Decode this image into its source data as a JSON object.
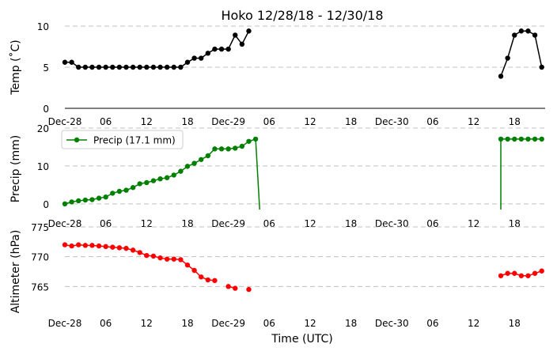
{
  "chart_data": {
    "type": "line",
    "title": "Hoko 12/28/18 - 12/30/18",
    "xlabel": "Time (UTC)",
    "x_unit": "hours from Dec-28 00:00 UTC",
    "x_ticks": [
      {
        "hour": 0,
        "label": "Dec-28"
      },
      {
        "hour": 6,
        "label": "06"
      },
      {
        "hour": 12,
        "label": "12"
      },
      {
        "hour": 18,
        "label": "18"
      },
      {
        "hour": 24,
        "label": "Dec-29"
      },
      {
        "hour": 30,
        "label": "06"
      },
      {
        "hour": 36,
        "label": "12"
      },
      {
        "hour": 42,
        "label": "18"
      },
      {
        "hour": 48,
        "label": "Dec-30"
      },
      {
        "hour": 54,
        "label": "06"
      },
      {
        "hour": 60,
        "label": "12"
      },
      {
        "hour": 66,
        "label": "18"
      }
    ],
    "xlim": [
      0,
      70.5
    ],
    "grid": "horizontal dashed",
    "panels": [
      {
        "key": "temp",
        "ylabel": "Temp (˚C)",
        "ylim": [
          0,
          10
        ],
        "yticks": [
          0,
          5,
          10
        ],
        "color": "#000000",
        "legend": null,
        "segments": [
          {
            "x": [
              0,
              1,
              2,
              3,
              4,
              5,
              6,
              7,
              8,
              9,
              10,
              11,
              12,
              13,
              14,
              15,
              16,
              17,
              18,
              19,
              20,
              21,
              22,
              23,
              24,
              25,
              26,
              27
            ],
            "y": [
              5.6,
              5.6,
              5.0,
              5.0,
              5.0,
              5.0,
              5.0,
              5.0,
              5.0,
              5.0,
              5.0,
              5.0,
              5.0,
              5.0,
              5.0,
              5.0,
              5.0,
              5.0,
              5.6,
              6.1,
              6.1,
              6.7,
              7.2,
              7.2,
              7.2,
              8.9,
              7.8,
              9.4
            ]
          },
          {
            "x": [
              64,
              65,
              66,
              67,
              68,
              69,
              70
            ],
            "y": [
              3.9,
              6.1,
              8.9,
              9.4,
              9.4,
              8.9,
              5.0
            ]
          }
        ]
      },
      {
        "key": "precip",
        "ylabel": "Precip (mm)",
        "ylim": [
          -1.5,
          20
        ],
        "yticks": [
          0,
          10,
          20
        ],
        "color": "#008000",
        "legend": "Precip (17.1 mm)",
        "segments": [
          {
            "x": [
              0,
              1,
              2,
              3,
              4,
              5,
              6,
              7,
              8,
              9,
              10,
              11,
              12,
              13,
              14,
              15,
              16,
              17,
              18,
              19,
              20,
              21,
              22,
              23,
              24,
              25,
              26,
              27,
              28,
              28.6
            ],
            "y": [
              0.0,
              0.5,
              0.8,
              1.0,
              1.1,
              1.5,
              1.8,
              2.8,
              3.3,
              3.6,
              4.3,
              5.3,
              5.6,
              6.1,
              6.6,
              6.9,
              7.6,
              8.6,
              9.9,
              10.7,
              11.7,
              12.7,
              14.5,
              14.5,
              14.5,
              14.7,
              15.2,
              16.5,
              17.1,
              -1.5
            ],
            "markers": 29
          },
          {
            "x": [
              64,
              64,
              65,
              66,
              67,
              68,
              69,
              70
            ],
            "y": [
              -1.5,
              17.1,
              17.1,
              17.1,
              17.1,
              17.1,
              17.1,
              17.1
            ],
            "markers_from": 1
          }
        ]
      },
      {
        "key": "altimeter",
        "ylabel": "Altimeter (hPa)",
        "ylim": [
          760,
          775
        ],
        "yticks": [
          765,
          770,
          775
        ],
        "color": "#ff0000",
        "legend": null,
        "segments": [
          {
            "x": [
              0,
              1,
              2,
              3,
              4,
              5,
              6,
              7,
              8,
              9,
              10,
              11,
              12,
              13,
              14,
              15,
              16,
              17,
              18,
              19,
              20,
              21,
              22
            ],
            "y": [
              772.0,
              771.8,
              772.0,
              771.9,
              771.9,
              771.8,
              771.7,
              771.6,
              771.5,
              771.4,
              771.1,
              770.7,
              770.2,
              770.1,
              769.8,
              769.6,
              769.6,
              769.5,
              768.6,
              767.7,
              766.6,
              766.1,
              766.0
            ]
          },
          {
            "x": [
              24,
              25
            ],
            "y": [
              765.0,
              764.7
            ]
          },
          {
            "x": [
              27
            ],
            "y": [
              764.5
            ]
          },
          {
            "x": [
              64,
              65,
              66,
              67,
              68,
              69,
              70
            ],
            "y": [
              766.8,
              767.2,
              767.2,
              766.8,
              766.8,
              767.2,
              767.6
            ]
          }
        ]
      }
    ]
  }
}
